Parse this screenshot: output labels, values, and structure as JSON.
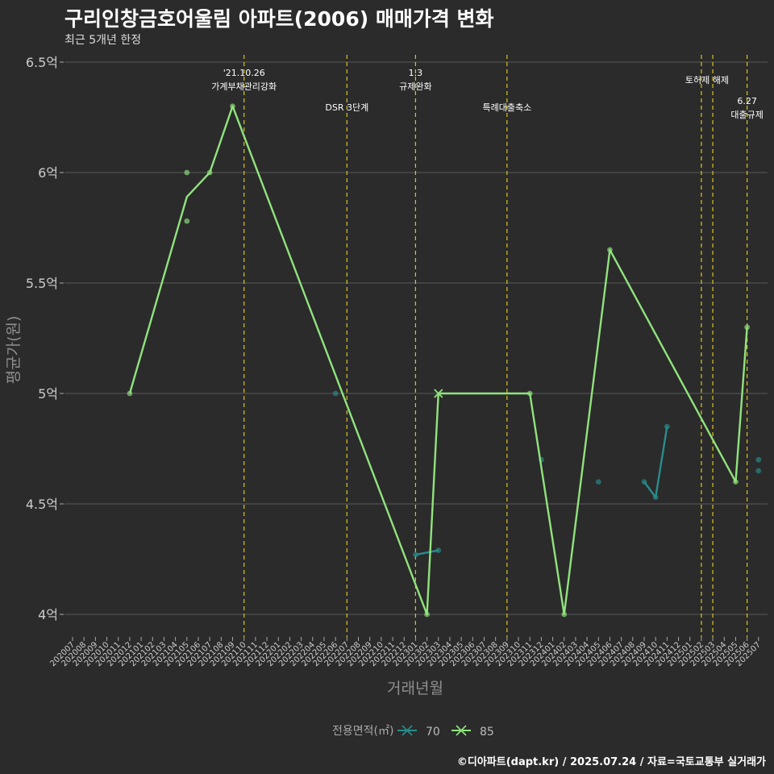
{
  "title": "구리인창금호어울림 아파트(2006) 매매가격 변화",
  "subtitle": "최근 5개년 한정",
  "caption": "©디아파트(dapt.kr) / 2025.07.24 / 자료=국토교통부 실거래가",
  "chart_data": {
    "type": "line",
    "xlabel": "거래년월",
    "ylabel": "평균가(원)",
    "ylim": [
      3.88,
      6.5
    ],
    "y_ticks": [
      {
        "value": 4.0,
        "label": "4억"
      },
      {
        "value": 4.5,
        "label": "4.5억"
      },
      {
        "value": 5.0,
        "label": "5억"
      },
      {
        "value": 5.5,
        "label": "5.5억"
      },
      {
        "value": 6.0,
        "label": "6억"
      },
      {
        "value": 6.5,
        "label": "6.5억"
      }
    ],
    "categories": [
      "202007",
      "202008",
      "202009",
      "202010",
      "202011",
      "202012",
      "202101",
      "202102",
      "202103",
      "202104",
      "202105",
      "202106",
      "202107",
      "202108",
      "202109",
      "202110",
      "202111",
      "202112",
      "202201",
      "202202",
      "202203",
      "202204",
      "202205",
      "202206",
      "202207",
      "202208",
      "202209",
      "202210",
      "202211",
      "202212",
      "202301",
      "202302",
      "202303",
      "202304",
      "202305",
      "202306",
      "202307",
      "202308",
      "202309",
      "202310",
      "202311",
      "202312",
      "202401",
      "202402",
      "202403",
      "202404",
      "202405",
      "202406",
      "202407",
      "202408",
      "202409",
      "202410",
      "202411",
      "202412",
      "202501",
      "202502",
      "202503",
      "202504",
      "202505",
      "202506",
      "202507"
    ],
    "legend_title": "전용면적(㎡)",
    "series": [
      {
        "name": "70",
        "color": "#2a8c8c",
        "marker": "dot",
        "line_segments": [
          [
            {
              "x": "202301",
              "y": 4.27
            },
            {
              "x": "202303",
              "y": 4.29
            }
          ],
          [
            {
              "x": "202409",
              "y": 4.6
            },
            {
              "x": "202410",
              "y": 4.53
            },
            {
              "x": "202411",
              "y": 4.85
            }
          ]
        ],
        "points": [
          {
            "x": "202301",
            "y": 4.27
          },
          {
            "x": "202303",
            "y": 4.29
          },
          {
            "x": "202206",
            "y": 5.0
          },
          {
            "x": "202312",
            "y": 4.7
          },
          {
            "x": "202405",
            "y": 4.6
          },
          {
            "x": "202409",
            "y": 4.6
          },
          {
            "x": "202410",
            "y": 4.53
          },
          {
            "x": "202411",
            "y": 4.85
          },
          {
            "x": "202507",
            "y": 4.7
          },
          {
            "x": "202507",
            "y": 4.65
          }
        ]
      },
      {
        "name": "85",
        "color": "#90e37d",
        "marker": "x",
        "line_segments": [
          [
            {
              "x": "202012",
              "y": 5.0
            },
            {
              "x": "202105",
              "y": 5.89
            },
            {
              "x": "202107",
              "y": 6.0
            },
            {
              "x": "202109",
              "y": 6.3
            },
            {
              "x": "202302",
              "y": 4.0
            },
            {
              "x": "202303",
              "y": 5.0
            },
            {
              "x": "202311",
              "y": 5.0
            },
            {
              "x": "202402",
              "y": 4.0
            },
            {
              "x": "202406",
              "y": 5.65
            },
            {
              "x": "202505",
              "y": 4.6
            },
            {
              "x": "202506",
              "y": 5.3
            }
          ]
        ],
        "points": [
          {
            "x": "202012",
            "y": 5.0
          },
          {
            "x": "202105",
            "y": 6.0
          },
          {
            "x": "202105",
            "y": 5.78
          },
          {
            "x": "202107",
            "y": 6.0
          },
          {
            "x": "202109",
            "y": 6.3
          },
          {
            "x": "202302",
            "y": 4.0
          },
          {
            "x": "202311",
            "y": 5.0
          },
          {
            "x": "202402",
            "y": 4.0
          },
          {
            "x": "202406",
            "y": 5.65
          },
          {
            "x": "202505",
            "y": 4.6
          },
          {
            "x": "202506",
            "y": 5.3
          }
        ],
        "cross_points": [
          {
            "x": "202303",
            "y": 5.0
          }
        ]
      }
    ],
    "events": [
      {
        "x": 202110,
        "text_lines": [
          "'21.10.26",
          "가계부채관리강화"
        ],
        "level": 1
      },
      {
        "x": 202207,
        "text_lines": [
          "DSR 3단계"
        ],
        "level": 3
      },
      {
        "x": 202301,
        "text_lines": [
          "1.3",
          "규제완화"
        ],
        "level": 1
      },
      {
        "x": 202309,
        "text_lines": [
          "특례대출축소"
        ],
        "level": 3
      },
      {
        "x": 202502,
        "text_lines": [
          "토허제 해제"
        ],
        "level": 2,
        "center_between": 202503
      },
      {
        "x": 202503,
        "text_lines": [],
        "level": 2
      },
      {
        "x": 202506,
        "text_lines": [
          "6.27",
          "대출규제"
        ],
        "level": 4
      }
    ],
    "colors": {
      "background": "#2b2b2b",
      "grid": "#5a5a5a",
      "event_line": "#d9c51f"
    }
  }
}
